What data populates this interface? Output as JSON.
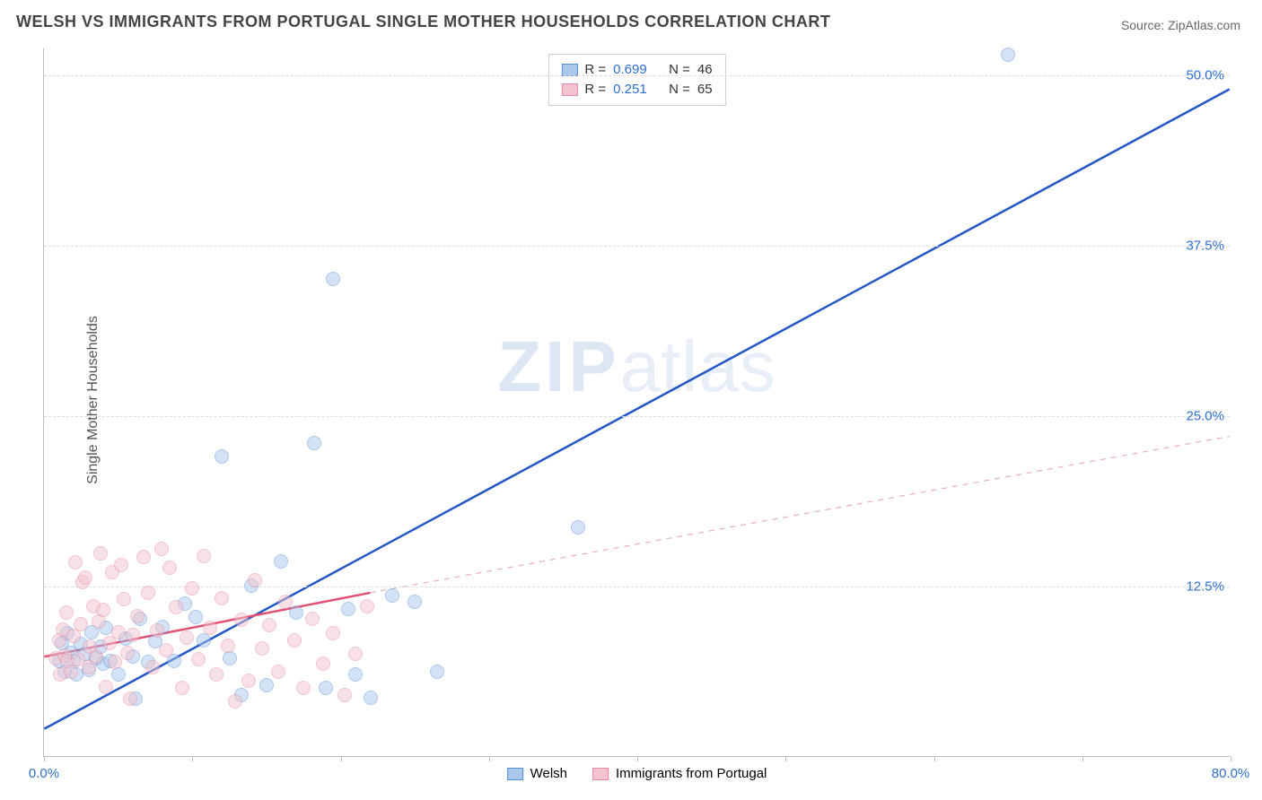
{
  "title": "WELSH VS IMMIGRANTS FROM PORTUGAL SINGLE MOTHER HOUSEHOLDS CORRELATION CHART",
  "source": "Source: ZipAtlas.com",
  "ylabel": "Single Mother Households",
  "watermark_bold": "ZIP",
  "watermark_rest": "atlas",
  "chart": {
    "type": "scatter-with-regression",
    "background_color": "#ffffff",
    "grid_color": "#dddddd",
    "axis_color": "#bbbbbb",
    "xlim": [
      0,
      80
    ],
    "ylim": [
      0,
      52
    ],
    "xticks": [
      0,
      10,
      20,
      30,
      40,
      50,
      60,
      70,
      80
    ],
    "xtick_labels": {
      "0": "0.0%",
      "80": "80.0%"
    },
    "xtick_label_color": "#2f6fd0",
    "yticks": [
      12.5,
      25.0,
      37.5,
      50.0
    ],
    "ytick_label_color": "#2f6fd0",
    "ytick_label_format": "{v}%",
    "marker_radius": 8,
    "marker_opacity": 0.5,
    "marker_stroke_width": 1.5,
    "series": [
      {
        "name": "Welsh",
        "color_fill": "#a9c8ec",
        "color_stroke": "#5a91d6",
        "R": "0.699",
        "N": "46",
        "regression": {
          "x1": 0,
          "y1": 2.0,
          "x2": 80,
          "y2": 49.0,
          "stroke": "#2257c5",
          "width": 2.5,
          "dash": "none"
        },
        "points": [
          [
            1,
            7
          ],
          [
            1.2,
            8.3
          ],
          [
            1.4,
            6.2
          ],
          [
            1.6,
            9.0
          ],
          [
            1.8,
            7.6
          ],
          [
            2,
            7.0
          ],
          [
            2.2,
            6.0
          ],
          [
            2.5,
            8.2
          ],
          [
            2.8,
            7.5
          ],
          [
            3,
            6.3
          ],
          [
            3.2,
            9.1
          ],
          [
            3.5,
            7.2
          ],
          [
            3.8,
            8.0
          ],
          [
            4,
            6.8
          ],
          [
            4.2,
            9.4
          ],
          [
            4.5,
            7.0
          ],
          [
            5,
            6.0
          ],
          [
            5.5,
            8.6
          ],
          [
            6,
            7.3
          ],
          [
            6.5,
            10.1
          ],
          [
            7,
            6.9
          ],
          [
            7.5,
            8.4
          ],
          [
            8,
            9.5
          ],
          [
            8.8,
            7.0
          ],
          [
            9.5,
            11.2
          ],
          [
            10.2,
            10.2
          ],
          [
            10.8,
            8.5
          ],
          [
            12,
            22.0
          ],
          [
            12.5,
            7.2
          ],
          [
            13.3,
            4.5
          ],
          [
            14,
            12.5
          ],
          [
            15,
            5.2
          ],
          [
            16,
            14.3
          ],
          [
            17,
            10.5
          ],
          [
            18.2,
            23.0
          ],
          [
            19,
            5.0
          ],
          [
            19.5,
            35.0
          ],
          [
            20.5,
            10.8
          ],
          [
            21,
            6.0
          ],
          [
            22,
            4.3
          ],
          [
            23.5,
            11.8
          ],
          [
            25,
            11.3
          ],
          [
            26.5,
            6.2
          ],
          [
            36,
            16.8
          ],
          [
            65,
            51.5
          ],
          [
            6.2,
            4.2
          ]
        ]
      },
      {
        "name": "Immigrants from Portugal",
        "color_fill": "#f3c4cf",
        "color_stroke": "#e68aa2",
        "R": "0.251",
        "N": "65",
        "regression_solid": {
          "x1": 0,
          "y1": 7.3,
          "x2": 22,
          "y2": 12.0,
          "stroke": "#e15073",
          "width": 2.5
        },
        "regression_dashed": {
          "x1": 22,
          "y1": 12.0,
          "x2": 80,
          "y2": 23.5,
          "stroke": "#e9aeb9",
          "width": 1.2,
          "dash": "6,6"
        },
        "points": [
          [
            0.8,
            7.2
          ],
          [
            1.0,
            8.5
          ],
          [
            1.1,
            6.0
          ],
          [
            1.3,
            9.3
          ],
          [
            1.4,
            7.4
          ],
          [
            1.5,
            10.5
          ],
          [
            1.6,
            7.0
          ],
          [
            1.8,
            6.2
          ],
          [
            2.0,
            8.8
          ],
          [
            2.1,
            14.2
          ],
          [
            2.3,
            7.1
          ],
          [
            2.5,
            9.7
          ],
          [
            2.6,
            12.8
          ],
          [
            2.8,
            13.1
          ],
          [
            3.0,
            6.5
          ],
          [
            3.1,
            8.0
          ],
          [
            3.3,
            11.0
          ],
          [
            3.5,
            7.3
          ],
          [
            3.7,
            9.9
          ],
          [
            3.8,
            14.9
          ],
          [
            4.0,
            10.7
          ],
          [
            4.2,
            5.1
          ],
          [
            4.4,
            8.3
          ],
          [
            4.6,
            13.5
          ],
          [
            4.8,
            6.9
          ],
          [
            5.0,
            9.1
          ],
          [
            5.2,
            14.0
          ],
          [
            5.4,
            11.5
          ],
          [
            5.6,
            7.6
          ],
          [
            5.8,
            4.2
          ],
          [
            6.0,
            8.9
          ],
          [
            6.3,
            10.3
          ],
          [
            6.7,
            14.6
          ],
          [
            7.0,
            12.0
          ],
          [
            7.3,
            6.5
          ],
          [
            7.6,
            9.2
          ],
          [
            7.9,
            15.2
          ],
          [
            8.2,
            7.8
          ],
          [
            8.5,
            13.8
          ],
          [
            8.9,
            10.9
          ],
          [
            9.3,
            5.0
          ],
          [
            9.6,
            8.7
          ],
          [
            10.0,
            12.3
          ],
          [
            10.4,
            7.1
          ],
          [
            10.8,
            14.7
          ],
          [
            11.2,
            9.4
          ],
          [
            11.6,
            6.0
          ],
          [
            12.0,
            11.6
          ],
          [
            12.4,
            8.1
          ],
          [
            12.9,
            4.0
          ],
          [
            13.3,
            10.0
          ],
          [
            13.8,
            5.5
          ],
          [
            14.2,
            12.9
          ],
          [
            14.7,
            7.9
          ],
          [
            15.2,
            9.6
          ],
          [
            15.8,
            6.2
          ],
          [
            16.3,
            11.3
          ],
          [
            16.9,
            8.5
          ],
          [
            17.5,
            5.0
          ],
          [
            18.1,
            10.1
          ],
          [
            18.8,
            6.8
          ],
          [
            19.5,
            9.0
          ],
          [
            20.3,
            4.5
          ],
          [
            21.0,
            7.5
          ],
          [
            21.8,
            11.0
          ]
        ]
      }
    ],
    "legend_top": {
      "rows": [
        {
          "swatch_fill": "#a9c8ec",
          "swatch_stroke": "#5a91d6",
          "r_label": "R =",
          "r_value": "0.699",
          "n_label": "N =",
          "n_value": "46"
        },
        {
          "swatch_fill": "#f3c4cf",
          "swatch_stroke": "#e68aa2",
          "r_label": "R =",
          "r_value": "0.251",
          "n_label": "N =",
          "n_value": "65"
        }
      ],
      "r_value_color": "#2f6fd0",
      "n_value_color": "#333333",
      "label_color": "#333333"
    },
    "legend_bottom": [
      {
        "swatch_fill": "#a9c8ec",
        "swatch_stroke": "#5a91d6",
        "label": "Welsh"
      },
      {
        "swatch_fill": "#f3c4cf",
        "swatch_stroke": "#e68aa2",
        "label": "Immigrants from Portugal"
      }
    ]
  }
}
